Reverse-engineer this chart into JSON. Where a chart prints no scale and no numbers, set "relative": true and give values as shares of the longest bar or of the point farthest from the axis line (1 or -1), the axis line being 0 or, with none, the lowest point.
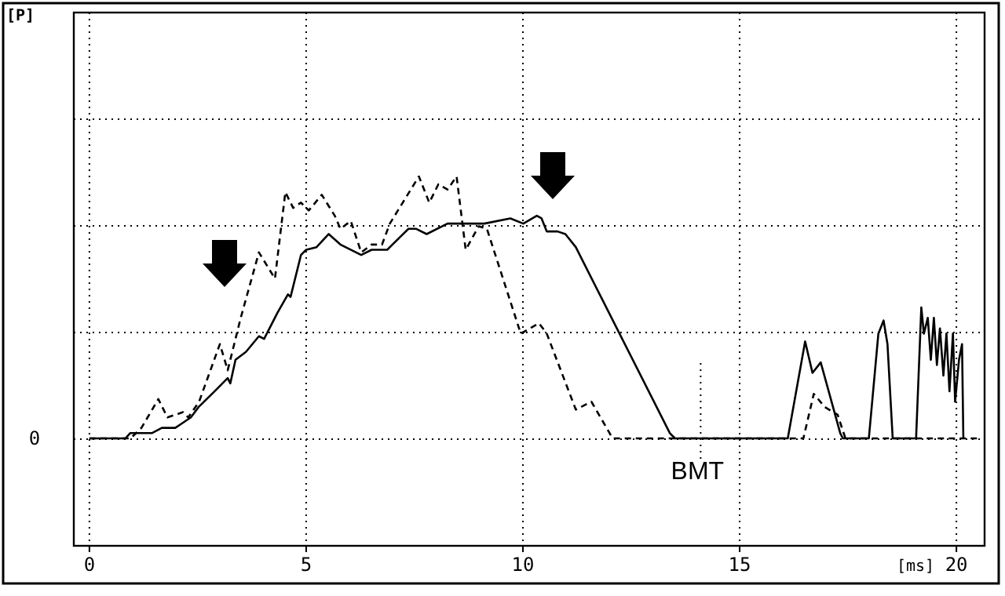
{
  "chart_data": {
    "type": "line",
    "relative": true,
    "xlabel": "[ms]",
    "xlim": [
      -0.36,
      20.65
    ],
    "xticks": [
      0,
      5,
      10,
      15,
      20
    ],
    "annotations": [
      "0",
      "[P]"
    ],
    "grid": true,
    "marker": "none",
    "ref_lines": [
      {
        "axis": "x",
        "value": 14.1,
        "label": "BMT",
        "line_style": "dotted"
      }
    ],
    "series": [
      {
        "color": "#000000",
        "line_style": "solid",
        "x": [
          0,
          0.83,
          0.94,
          1.44,
          1.67,
          1.98,
          2.16,
          2.34,
          2.52,
          2.89,
          3.19,
          3.25,
          3.37,
          3.61,
          3.91,
          4.03,
          4.34,
          4.58,
          4.64,
          4.88,
          5.0,
          5.24,
          5.52,
          5.79,
          6.27,
          6.51,
          6.87,
          6.99,
          7.36,
          7.54,
          7.78,
          8.26,
          9.11,
          9.71,
          10.01,
          10.32,
          10.43,
          10.55,
          10.8,
          10.98,
          11.22,
          13.39,
          13.51,
          16.11,
          16.51,
          16.68,
          16.87,
          17.32,
          17.38,
          17.98,
          18.2,
          18.32,
          18.41,
          18.53,
          19.07,
          19.19,
          19.25,
          19.34,
          19.41,
          19.48,
          19.55,
          19.62,
          19.7,
          19.77,
          19.84,
          19.92,
          19.97,
          20.06,
          20.13,
          20.16
        ],
        "values": [
          0,
          0,
          0.02,
          0.02,
          0.04,
          0.04,
          0.06,
          0.08,
          0.12,
          0.18,
          0.23,
          0.21,
          0.3,
          0.33,
          0.39,
          0.38,
          0.48,
          0.55,
          0.54,
          0.7,
          0.72,
          0.73,
          0.78,
          0.74,
          0.7,
          0.72,
          0.72,
          0.74,
          0.8,
          0.8,
          0.78,
          0.82,
          0.82,
          0.84,
          0.82,
          0.85,
          0.84,
          0.79,
          0.79,
          0.78,
          0.73,
          0.02,
          0,
          0,
          0.37,
          0.25,
          0.29,
          0.02,
          0,
          0,
          0.4,
          0.45,
          0.36,
          0,
          0,
          0.5,
          0.4,
          0.46,
          0.3,
          0.46,
          0.28,
          0.42,
          0.24,
          0.4,
          0.18,
          0.4,
          0.14,
          0.3,
          0.36,
          0
        ]
      },
      {
        "color": "#000000",
        "line_style": "dashed",
        "x": [
          0,
          0.95,
          1.2,
          1.59,
          1.8,
          2.16,
          2.28,
          2.53,
          3.01,
          3.19,
          3.49,
          3.91,
          4.28,
          4.52,
          4.7,
          4.88,
          5.06,
          5.36,
          5.66,
          5.79,
          6.03,
          6.27,
          6.51,
          6.75,
          6.93,
          7.6,
          7.84,
          8.05,
          8.26,
          8.47,
          8.68,
          8.98,
          9.17,
          9.95,
          10.37,
          10.55,
          11.22,
          11.58,
          12.07,
          16.47,
          16.71,
          16.96,
          17.26,
          17.44,
          20.52
        ],
        "values": [
          0,
          0,
          0.04,
          0.15,
          0.08,
          0.1,
          0.08,
          0.14,
          0.36,
          0.26,
          0.46,
          0.71,
          0.61,
          0.94,
          0.88,
          0.9,
          0.87,
          0.93,
          0.85,
          0.8,
          0.83,
          0.71,
          0.74,
          0.74,
          0.82,
          1.0,
          0.9,
          0.97,
          0.95,
          1.0,
          0.72,
          0.81,
          0.8,
          0.4,
          0.44,
          0.4,
          0.11,
          0.14,
          0,
          0,
          0.17,
          0.12,
          0.09,
          0,
          0
        ]
      }
    ]
  }
}
